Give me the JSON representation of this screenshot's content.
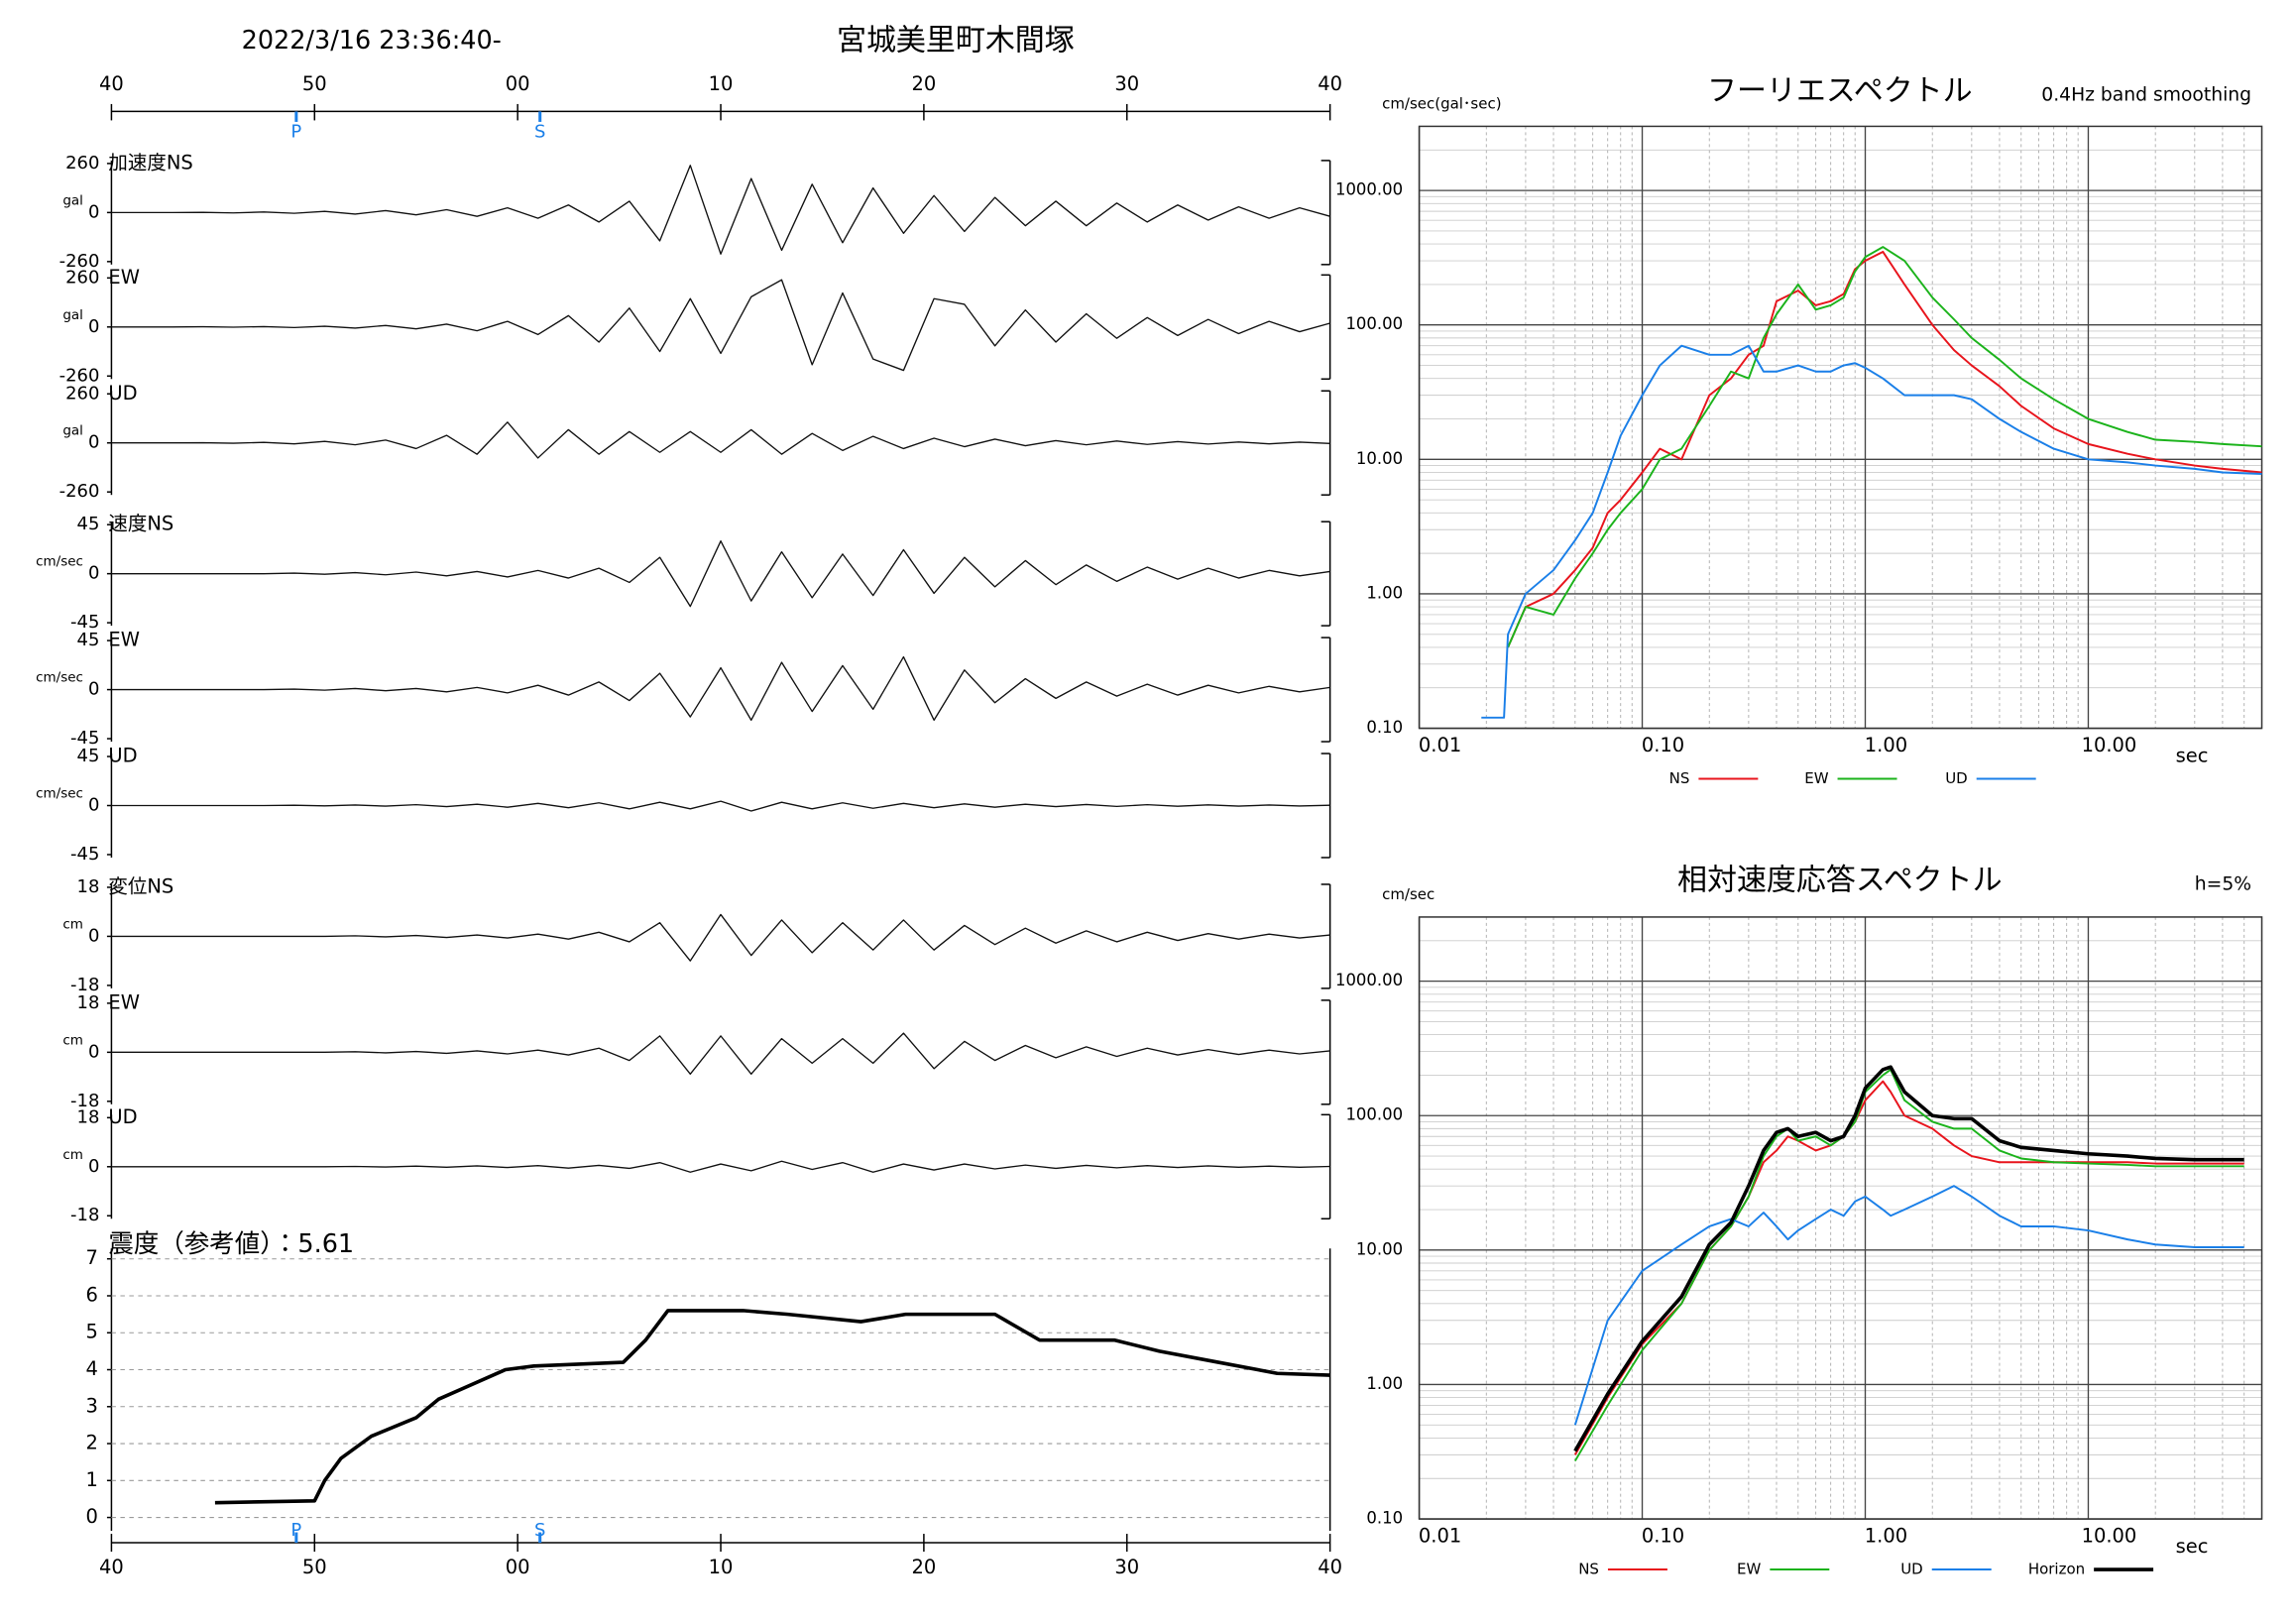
{
  "chart_data": [
    {
      "type": "waveform",
      "title": "宮城美里町木間塚",
      "subtitle": "2022/3/16 23:36:40-",
      "xlim": [
        0,
        60
      ],
      "xticks": [
        {
          "value": 0,
          "label": "40"
        },
        {
          "value": 10,
          "label": "50"
        },
        {
          "value": 20,
          "label": "00"
        },
        {
          "value": 30,
          "label": "10"
        },
        {
          "value": 40,
          "label": "20"
        },
        {
          "value": 50,
          "label": "30"
        },
        {
          "value": 60,
          "label": "40"
        }
      ],
      "markers": [
        {
          "label": "P",
          "value": 9.1
        },
        {
          "label": "S",
          "value": 21.1
        }
      ],
      "marker_color": "#1a7fe8",
      "x": [
        0,
        1.5,
        3,
        4.5,
        6,
        7.5,
        9,
        10.5,
        12,
        13.5,
        15,
        16.5,
        18,
        19.5,
        21,
        22.5,
        24,
        25.5,
        27,
        28.5,
        30,
        31.5,
        33,
        34.5,
        36,
        37.5,
        39,
        40.5,
        42,
        43.5,
        45,
        46.5,
        48,
        49.5,
        51,
        52.5,
        54,
        55.5,
        57,
        58.5,
        60
      ],
      "panels": [
        {
          "label": "加速度NS",
          "unit": "gal",
          "ylim": [
            -260,
            260
          ],
          "yticks": [
            -260,
            0,
            260
          ],
          "values": [
            0,
            0,
            0,
            1,
            -2,
            3,
            -4,
            6,
            -8,
            10,
            -12,
            15,
            -20,
            25,
            -30,
            40,
            -50,
            60,
            -150,
            250,
            -220,
            180,
            -200,
            150,
            -160,
            130,
            -110,
            90,
            -100,
            80,
            -70,
            60,
            -70,
            50,
            -50,
            40,
            -40,
            30,
            -30,
            25,
            -20
          ]
        },
        {
          "label": "EW",
          "unit": "gal",
          "ylim": [
            -260,
            260
          ],
          "yticks": [
            -260,
            0,
            260
          ],
          "values": [
            0,
            0,
            0,
            1,
            -1,
            2,
            -3,
            4,
            -6,
            8,
            -10,
            15,
            -20,
            30,
            -40,
            60,
            -80,
            100,
            -130,
            150,
            -140,
            160,
            250,
            -200,
            180,
            -170,
            -230,
            150,
            120,
            -100,
            90,
            -80,
            70,
            -60,
            50,
            -45,
            40,
            -35,
            30,
            -25,
            20
          ]
        },
        {
          "label": "UD",
          "unit": "gal",
          "ylim": [
            -260,
            260
          ],
          "yticks": [
            -260,
            0,
            260
          ],
          "values": [
            0,
            0,
            0,
            1,
            -2,
            3,
            -5,
            8,
            -10,
            15,
            -30,
            40,
            -60,
            110,
            -80,
            70,
            -60,
            60,
            -50,
            60,
            -50,
            70,
            -60,
            50,
            -40,
            35,
            -30,
            25,
            -20,
            20,
            -15,
            12,
            -10,
            10,
            -8,
            7,
            -6,
            5,
            -5,
            4,
            -3
          ]
        },
        {
          "label": "速度NS",
          "unit": "cm/sec",
          "ylim": [
            -45,
            45
          ],
          "yticks": [
            -45,
            0,
            45
          ],
          "values": [
            0,
            0,
            0,
            0,
            0,
            0,
            0.5,
            -0.5,
            1,
            -1,
            1.5,
            -2,
            2,
            -3,
            3,
            -4,
            5,
            -8,
            15,
            -30,
            30,
            -25,
            20,
            -22,
            18,
            -20,
            22,
            -18,
            15,
            -12,
            12,
            -10,
            8,
            -7,
            6,
            -5,
            5,
            -4,
            3,
            -2,
            2
          ]
        },
        {
          "label": "EW",
          "unit": "cm/sec",
          "ylim": [
            -45,
            45
          ],
          "yticks": [
            -45,
            0,
            45
          ],
          "values": [
            0,
            0,
            0,
            0,
            0,
            0,
            0.5,
            -0.5,
            1,
            -1,
            1,
            -2,
            2,
            -3,
            4,
            -5,
            7,
            -10,
            15,
            -25,
            20,
            -28,
            25,
            -20,
            22,
            -18,
            30,
            -28,
            18,
            -12,
            10,
            -8,
            7,
            -6,
            5,
            -5,
            4,
            -3,
            3,
            -2,
            2
          ]
        },
        {
          "label": "UD",
          "unit": "cm/sec",
          "ylim": [
            -45,
            45
          ],
          "yticks": [
            -45,
            0,
            45
          ],
          "values": [
            0,
            0,
            0,
            0,
            0,
            0,
            0.3,
            -0.3,
            0.5,
            -0.5,
            0.8,
            -1,
            1.2,
            -1.5,
            2,
            -2,
            2.5,
            -3,
            3,
            -3,
            4,
            -5,
            3,
            -3,
            2.5,
            -2.5,
            2,
            -2,
            1.5,
            -1.5,
            1.2,
            -1,
            1,
            -0.8,
            0.8,
            -0.6,
            0.6,
            -0.5,
            0.5,
            -0.4,
            0.3
          ]
        },
        {
          "label": "変位NS",
          "unit": "cm",
          "ylim": [
            -18,
            18
          ],
          "yticks": [
            -18,
            0,
            18
          ],
          "values": [
            0,
            0,
            0,
            0,
            0,
            0,
            0,
            0,
            0.2,
            -0.2,
            0.3,
            -0.4,
            0.5,
            -0.6,
            0.8,
            -1,
            1.5,
            -2,
            5,
            -9,
            8,
            -7,
            6,
            -6,
            5,
            -5,
            6,
            -5,
            4,
            -3,
            3,
            -2.5,
            2,
            -2,
            1.5,
            -1.5,
            1,
            -1,
            0.8,
            -0.6,
            0.5
          ]
        },
        {
          "label": "EW",
          "unit": "cm",
          "ylim": [
            -18,
            18
          ],
          "yticks": [
            -18,
            0,
            18
          ],
          "values": [
            0,
            0,
            0,
            0,
            0,
            0,
            0,
            0,
            0.2,
            -0.2,
            0.3,
            -0.4,
            0.5,
            -0.6,
            0.8,
            -1,
            1.5,
            -3,
            6,
            -8,
            6,
            -8,
            5,
            -4,
            5,
            -4,
            7,
            -6,
            4,
            -3,
            2.5,
            -2,
            2,
            -1.5,
            1.5,
            -1,
            1,
            -0.8,
            0.8,
            -0.6,
            0.5
          ]
        },
        {
          "label": "UD",
          "unit": "cm",
          "ylim": [
            -18,
            18
          ],
          "yticks": [
            -18,
            0,
            18
          ],
          "values": [
            0,
            0,
            0,
            0,
            0,
            0,
            0,
            0,
            0.1,
            -0.1,
            0.2,
            -0.2,
            0.3,
            -0.3,
            0.4,
            -0.5,
            0.5,
            -0.6,
            1.5,
            -2,
            1,
            -1.5,
            2,
            -1,
            1.5,
            -2,
            1,
            -1.2,
            1,
            -0.8,
            0.6,
            -0.6,
            0.5,
            -0.4,
            0.4,
            -0.3,
            0.3,
            -0.2,
            0.2,
            -0.2,
            0.1
          ]
        }
      ],
      "intensity": {
        "title": "震度（参考値）：5.61",
        "ylim": [
          0,
          7
        ],
        "yticks": [
          0,
          1,
          2,
          3,
          4,
          5,
          6,
          7
        ],
        "grid": true,
        "x": [
          5.1,
          10.0,
          10.5,
          11.3,
          12.8,
          15.0,
          16.1,
          19.4,
          20.8,
          25.2,
          26.3,
          27.4,
          31.1,
          33.3,
          36.9,
          39.1,
          43.5,
          45.7,
          49.4,
          51.6,
          54.5,
          57.4,
          60
        ],
        "values": [
          0.4,
          0.45,
          1.0,
          1.6,
          2.2,
          2.7,
          3.2,
          4.0,
          4.1,
          4.2,
          4.8,
          5.6,
          5.6,
          5.5,
          5.3,
          5.5,
          5.5,
          4.8,
          4.8,
          4.5,
          4.2,
          3.9,
          3.85
        ]
      }
    },
    {
      "type": "line",
      "title": "フーリエスペクトル",
      "subtitle": "0.4Hz band smoothing",
      "ylabel": "cm/sec(gal･sec)",
      "xlabel": "sec",
      "xscale": "log",
      "yscale": "log",
      "grid": true,
      "xlim": [
        0.01,
        60
      ],
      "ylim": [
        0.1,
        3000
      ],
      "xticks": [
        {
          "value": 0.01,
          "label": "0.01"
        },
        {
          "value": 0.1,
          "label": "0.10"
        },
        {
          "value": 1,
          "label": "1.00"
        },
        {
          "value": 10,
          "label": "10.00"
        }
      ],
      "yticks": [
        {
          "value": 0.1,
          "label": "0.10"
        },
        {
          "value": 1,
          "label": "1.00"
        },
        {
          "value": 10,
          "label": "10.00"
        },
        {
          "value": 100,
          "label": "100.00"
        },
        {
          "value": 1000,
          "label": "1000.00"
        }
      ],
      "x": [
        0.019,
        0.024,
        0.025,
        0.03,
        0.04,
        0.05,
        0.06,
        0.07,
        0.08,
        0.1,
        0.12,
        0.15,
        0.2,
        0.25,
        0.3,
        0.35,
        0.4,
        0.5,
        0.6,
        0.7,
        0.8,
        0.9,
        1.0,
        1.2,
        1.5,
        2,
        2.5,
        3,
        4,
        5,
        7,
        10,
        15,
        20,
        30,
        40,
        60
      ],
      "series": [
        {
          "name": "NS",
          "color": "#e8141c",
          "values": [
            null,
            null,
            0.4,
            0.8,
            1.0,
            1.5,
            2.2,
            4,
            5,
            8,
            12,
            10,
            30,
            40,
            60,
            70,
            150,
            180,
            140,
            150,
            170,
            260,
            300,
            350,
            200,
            100,
            65,
            50,
            35,
            25,
            17,
            13,
            11,
            10,
            9,
            8.5,
            8
          ]
        },
        {
          "name": "EW",
          "color": "#1bb31b",
          "values": [
            null,
            null,
            0.4,
            0.8,
            0.7,
            1.3,
            2,
            3,
            4,
            6,
            10,
            12,
            25,
            45,
            40,
            80,
            120,
            200,
            130,
            140,
            160,
            250,
            320,
            380,
            300,
            160,
            110,
            80,
            55,
            40,
            28,
            20,
            16,
            14,
            13.5,
            13,
            12.5
          ]
        },
        {
          "name": "UD",
          "color": "#1a7fe8",
          "values": [
            0.12,
            0.12,
            0.5,
            1.0,
            1.5,
            2.5,
            4,
            8,
            15,
            30,
            50,
            70,
            60,
            60,
            70,
            45,
            45,
            50,
            45,
            45,
            50,
            52,
            48,
            40,
            30,
            30,
            30,
            28,
            20,
            16,
            12,
            10,
            9.5,
            9,
            8.5,
            8,
            7.8
          ]
        }
      ]
    },
    {
      "type": "line",
      "title": "相対速度応答スペクトル",
      "subtitle": "h=5%",
      "ylabel": "cm/sec",
      "xlabel": "sec",
      "xscale": "log",
      "yscale": "log",
      "grid": true,
      "xlim": [
        0.01,
        60
      ],
      "ylim": [
        0.1,
        3000
      ],
      "xticks": [
        {
          "value": 0.01,
          "label": "0.01"
        },
        {
          "value": 0.1,
          "label": "0.10"
        },
        {
          "value": 1,
          "label": "1.00"
        },
        {
          "value": 10,
          "label": "10.00"
        }
      ],
      "yticks": [
        {
          "value": 0.1,
          "label": "0.10"
        },
        {
          "value": 1,
          "label": "1.00"
        },
        {
          "value": 10,
          "label": "10.00"
        },
        {
          "value": 100,
          "label": "100.00"
        },
        {
          "value": 1000,
          "label": "1000.00"
        }
      ],
      "x": [
        0.05,
        0.07,
        0.1,
        0.15,
        0.2,
        0.25,
        0.3,
        0.35,
        0.4,
        0.45,
        0.5,
        0.6,
        0.7,
        0.8,
        0.9,
        1.0,
        1.2,
        1.3,
        1.5,
        2,
        2.5,
        3,
        4,
        5,
        7,
        10,
        15,
        20,
        30,
        50
      ],
      "series": [
        {
          "name": "NS",
          "color": "#e8141c",
          "values": [
            0.3,
            0.8,
            2,
            4,
            10,
            15,
            25,
            45,
            55,
            70,
            65,
            55,
            60,
            70,
            90,
            130,
            180,
            150,
            100,
            80,
            60,
            50,
            45,
            45,
            45,
            45,
            45,
            44,
            44,
            44
          ]
        },
        {
          "name": "EW",
          "color": "#1bb31b",
          "values": [
            0.27,
            0.7,
            1.8,
            4,
            10,
            15,
            25,
            50,
            70,
            80,
            65,
            70,
            60,
            70,
            90,
            150,
            200,
            220,
            130,
            90,
            80,
            80,
            55,
            48,
            45,
            44,
            43,
            42,
            42,
            42
          ]
        },
        {
          "name": "UD",
          "color": "#1a7fe8",
          "values": [
            0.5,
            3,
            7,
            11,
            15,
            17,
            15,
            19,
            15,
            12,
            14,
            17,
            20,
            18,
            23,
            25,
            20,
            18,
            20,
            25,
            30,
            25,
            18,
            15,
            15,
            14,
            12,
            11,
            10.5,
            10.5
          ]
        },
        {
          "name": "Horizon",
          "color": "#000000",
          "values": [
            0.32,
            0.85,
            2.1,
            4.5,
            11,
            16,
            30,
            55,
            75,
            80,
            70,
            75,
            65,
            70,
            100,
            160,
            220,
            230,
            150,
            100,
            95,
            95,
            65,
            58,
            55,
            52,
            50,
            48,
            47,
            47
          ]
        }
      ]
    }
  ]
}
